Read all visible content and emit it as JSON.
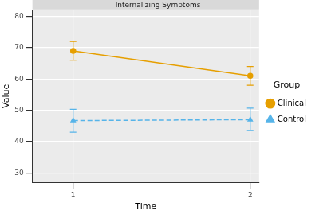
{
  "chart_data": {
    "type": "line",
    "title": "Internalizing Symptoms",
    "x_label": "Time",
    "y_label": "Value",
    "legend_title": "Group",
    "x": [
      1,
      2
    ],
    "series": [
      {
        "name": "Clinical",
        "color": "#E69F00",
        "marker": "circle",
        "line_style": "solid",
        "values": [
          69,
          61
        ],
        "error_low": [
          66,
          58
        ],
        "error_high": [
          72,
          64
        ]
      },
      {
        "name": "Control",
        "color": "#56B4E9",
        "marker": "triangle",
        "line_style": "dashed",
        "values": [
          46.7,
          47
        ],
        "error_low": [
          43,
          43.5
        ],
        "error_high": [
          50.3,
          50.7
        ]
      }
    ],
    "xlim": [
      0.77,
      2.05
    ],
    "xticks": [
      1,
      2
    ],
    "ylim": [
      27,
      82
    ],
    "yticks": [
      30,
      40,
      50,
      60,
      70,
      80
    ],
    "grid": true,
    "legend": "right"
  }
}
